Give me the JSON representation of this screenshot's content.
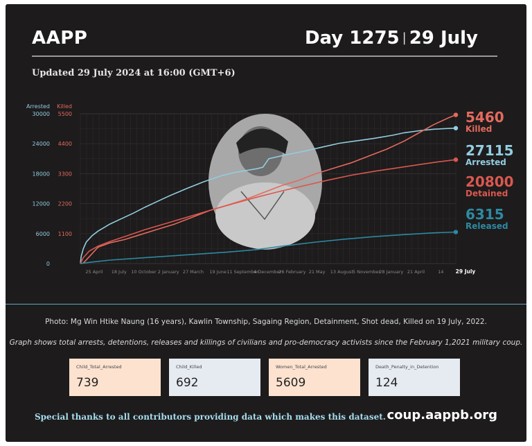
{
  "header": {
    "org": "AAPP",
    "day": "Day 1275",
    "date": "29 July",
    "separator": "|",
    "updated": "Updated 29 July 2024 at 16:00 (GMT+6)"
  },
  "photo_caption": "Photo: Mg Win Htike Naung (16 years), Kawlin Township, Sagaing Region, Detainment, Shot dead, Killed on 19 July, 2022.",
  "graph_note": "Graph shows total arrests, detentions, releases and killings of civilians and pro-democracy activists since the February 1,2021 military coup.",
  "stats": [
    {
      "label": "Child_Total_Arrested",
      "value": "739",
      "color": "#fde2d0"
    },
    {
      "label": "Child_Killed",
      "value": "692",
      "color": "#e6ebf2"
    },
    {
      "label": "Women_Total_Arrested",
      "value": "5609",
      "color": "#fde2d0"
    },
    {
      "label": "Death_Penalty_in_Detention",
      "value": "124",
      "color": "#e6ebf2"
    }
  ],
  "footer": {
    "thanks": "Special thanks to all contributors providing data which makes this dataset.",
    "site": "coup.aappb.org"
  },
  "colors": {
    "arrested": "#93cde0",
    "killed": "#e46a5e",
    "detained": "#d9584f",
    "released": "#2d8aa2",
    "background": "#1d1b1c"
  },
  "chart_data": {
    "type": "line",
    "left_axis_title": "Arrested",
    "right_axis_title": "Killed",
    "left_ticks": [
      "30000",
      "24000",
      "18000",
      "12000",
      "6000",
      "0"
    ],
    "right_ticks": [
      "5500",
      "4400",
      "3300",
      "2200",
      "1100"
    ],
    "left_ylim": [
      0,
      30000
    ],
    "right_ylim": [
      0,
      5500
    ],
    "x_ticks": [
      "25 April",
      "18 July",
      "10 October",
      "2 January",
      "27 March",
      "19 June",
      "11 September",
      "4 December",
      "26 February",
      "21 May",
      "13 August",
      "5 November",
      "28 January",
      "21 April",
      "14",
      "29 July"
    ],
    "grid": true,
    "series": [
      {
        "name": "Arrested",
        "axis": "left",
        "colorKey": "arrested",
        "final": "27115",
        "x": [
          0,
          3,
          10,
          20,
          40,
          60,
          80,
          100,
          140,
          180,
          220,
          260,
          300,
          360,
          420,
          480,
          520,
          560,
          600,
          620,
          640,
          700,
          760,
          820,
          880,
          940,
          1000,
          1060,
          1100,
          1150,
          1200,
          1250,
          1275
        ],
        "y": [
          0,
          1500,
          3000,
          4300,
          5600,
          6500,
          7200,
          7900,
          9000,
          10100,
          11300,
          12400,
          13500,
          15000,
          16400,
          17600,
          18200,
          18600,
          19000,
          19300,
          21000,
          21800,
          22500,
          23300,
          24100,
          24600,
          25100,
          25700,
          26200,
          26600,
          26900,
          27050,
          27115
        ]
      },
      {
        "name": "Killed",
        "axis": "right",
        "colorKey": "killed",
        "final": "5460",
        "x": [
          0,
          10,
          30,
          60,
          100,
          150,
          200,
          260,
          320,
          380,
          440,
          500,
          560,
          620,
          680,
          740,
          800,
          860,
          920,
          980,
          1040,
          1100,
          1150,
          1200,
          1250,
          1275
        ],
        "y": [
          0,
          20,
          250,
          600,
          760,
          880,
          1050,
          1250,
          1450,
          1700,
          1950,
          2150,
          2350,
          2600,
          2850,
          3050,
          3300,
          3500,
          3700,
          3950,
          4200,
          4500,
          4800,
          5100,
          5350,
          5460
        ]
      },
      {
        "name": "Detained",
        "axis": "left",
        "colorKey": "detained",
        "final": "20800",
        "x": [
          0,
          10,
          30,
          60,
          100,
          160,
          220,
          300,
          380,
          460,
          520,
          600,
          680,
          760,
          840,
          920,
          1000,
          1080,
          1160,
          1220,
          1275
        ],
        "y": [
          0,
          1200,
          2500,
          3500,
          4400,
          5600,
          6800,
          8200,
          9600,
          11000,
          12000,
          13300,
          14500,
          15600,
          16700,
          17700,
          18500,
          19200,
          19900,
          20400,
          20800
        ]
      },
      {
        "name": "Released",
        "axis": "left",
        "colorKey": "released",
        "final": "6315",
        "x": [
          0,
          40,
          100,
          200,
          300,
          400,
          500,
          600,
          700,
          800,
          900,
          1000,
          1100,
          1200,
          1275
        ],
        "y": [
          0,
          300,
          700,
          1100,
          1500,
          1900,
          2300,
          2800,
          3600,
          4300,
          4900,
          5400,
          5800,
          6150,
          6315
        ]
      }
    ]
  }
}
